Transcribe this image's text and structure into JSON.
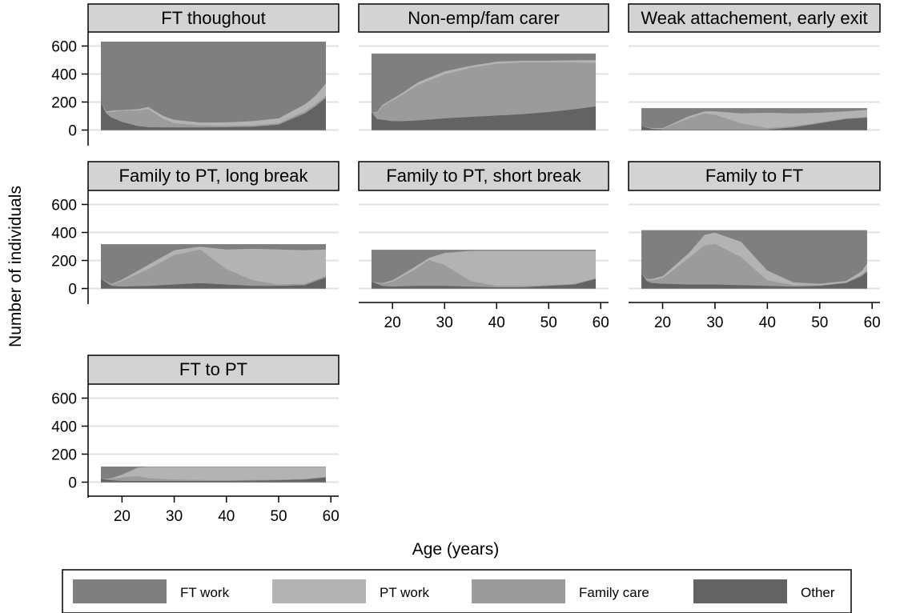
{
  "chart_data": {
    "type": "area",
    "subtype": "stacked-area small multiples",
    "xlabel": "Age (years)",
    "ylabel": "Number of individuals",
    "xlim": [
      16,
      59
    ],
    "ylim": [
      0,
      700
    ],
    "x_ticks": [
      20,
      30,
      40,
      50,
      60
    ],
    "y_ticks": [
      0,
      200,
      400,
      600
    ],
    "grid": true,
    "legend": {
      "placement": "bottom",
      "entries": [
        {
          "key": "ft",
          "label": "FT work",
          "color": "#7f7f7f"
        },
        {
          "key": "pt",
          "label": "PT work",
          "color": "#b3b3b3"
        },
        {
          "key": "fam",
          "label": "Family care",
          "color": "#9b9b9b"
        },
        {
          "key": "oth",
          "label": "Other",
          "color": "#636363"
        }
      ]
    },
    "stack_order_bottom_to_top": [
      "oth",
      "fam",
      "pt",
      "ft"
    ],
    "panels": [
      {
        "title": "FT thoughout",
        "total": 630,
        "x": [
          16,
          17,
          18,
          20,
          23,
          25,
          28,
          30,
          35,
          40,
          45,
          50,
          55,
          57,
          59
        ],
        "oth": [
          200,
          120,
          90,
          60,
          30,
          22,
          20,
          20,
          20,
          22,
          25,
          40,
          120,
          170,
          230
        ],
        "fam": [
          0,
          10,
          40,
          80,
          110,
          130,
          60,
          30,
          15,
          10,
          10,
          10,
          15,
          15,
          15
        ],
        "pt": [
          0,
          5,
          10,
          5,
          10,
          15,
          20,
          25,
          20,
          25,
          30,
          35,
          50,
          60,
          90
        ]
      },
      {
        "title": "Non-emp/fam carer",
        "total": 545,
        "x": [
          16,
          17,
          18,
          20,
          22,
          25,
          30,
          35,
          40,
          45,
          50,
          55,
          59
        ],
        "oth": [
          130,
          80,
          75,
          65,
          65,
          70,
          85,
          95,
          105,
          115,
          130,
          150,
          170
        ],
        "fam": [
          0,
          45,
          95,
          150,
          190,
          255,
          315,
          350,
          370,
          370,
          355,
          335,
          310
        ],
        "pt": [
          0,
          5,
          10,
          10,
          15,
          20,
          20,
          15,
          15,
          12,
          12,
          15,
          20
        ]
      },
      {
        "title": "Weak attachement, early exit",
        "total": 155,
        "x": [
          16,
          18,
          20,
          25,
          28,
          30,
          35,
          40,
          45,
          50,
          55,
          59
        ],
        "oth": [
          30,
          10,
          5,
          5,
          5,
          5,
          5,
          5,
          20,
          50,
          80,
          90
        ],
        "fam": [
          0,
          0,
          5,
          80,
          115,
          105,
          45,
          10,
          10,
          5,
          5,
          5
        ],
        "pt": [
          0,
          5,
          5,
          15,
          15,
          25,
          70,
          110,
          90,
          70,
          50,
          50
        ]
      },
      {
        "title": "Family to PT, long break",
        "total": 315,
        "x": [
          16,
          18,
          20,
          25,
          30,
          35,
          40,
          45,
          50,
          55,
          59
        ],
        "oth": [
          70,
          20,
          15,
          20,
          30,
          40,
          30,
          20,
          20,
          25,
          80
        ],
        "fam": [
          0,
          10,
          40,
          120,
          210,
          240,
          110,
          40,
          10,
          10,
          10
        ],
        "pt": [
          0,
          5,
          10,
          30,
          35,
          20,
          140,
          225,
          250,
          240,
          190
        ]
      },
      {
        "title": "Family to PT, short break",
        "total": 275,
        "x": [
          16,
          18,
          20,
          24,
          27,
          30,
          35,
          40,
          45,
          50,
          55,
          59
        ],
        "oth": [
          50,
          20,
          15,
          20,
          20,
          20,
          15,
          10,
          10,
          20,
          30,
          70
        ],
        "fam": [
          0,
          15,
          35,
          110,
          185,
          150,
          40,
          10,
          10,
          5,
          5,
          5
        ],
        "pt": [
          0,
          5,
          10,
          20,
          15,
          85,
          215,
          250,
          250,
          245,
          235,
          195
        ]
      },
      {
        "title": "Family to FT",
        "total": 415,
        "x": [
          16,
          17,
          18,
          20,
          25,
          28,
          30,
          35,
          40,
          45,
          50,
          55,
          58,
          59
        ],
        "oth": [
          110,
          55,
          40,
          35,
          30,
          30,
          30,
          25,
          20,
          15,
          20,
          40,
          90,
          120
        ],
        "fam": [
          0,
          10,
          20,
          40,
          190,
          280,
          290,
          200,
          40,
          10,
          5,
          5,
          10,
          10
        ],
        "pt": [
          0,
          5,
          10,
          15,
          35,
          75,
          80,
          110,
          70,
          20,
          10,
          10,
          25,
          50
        ]
      },
      {
        "title": "FT to PT",
        "total": 110,
        "x": [
          16,
          18,
          20,
          23,
          25,
          30,
          40,
          50,
          55,
          59
        ],
        "oth": [
          25,
          15,
          10,
          10,
          10,
          10,
          10,
          15,
          20,
          35
        ],
        "fam": [
          0,
          10,
          25,
          35,
          20,
          10,
          5,
          5,
          5,
          5
        ],
        "pt": [
          0,
          5,
          20,
          60,
          80,
          90,
          95,
          90,
          85,
          70
        ]
      }
    ]
  }
}
